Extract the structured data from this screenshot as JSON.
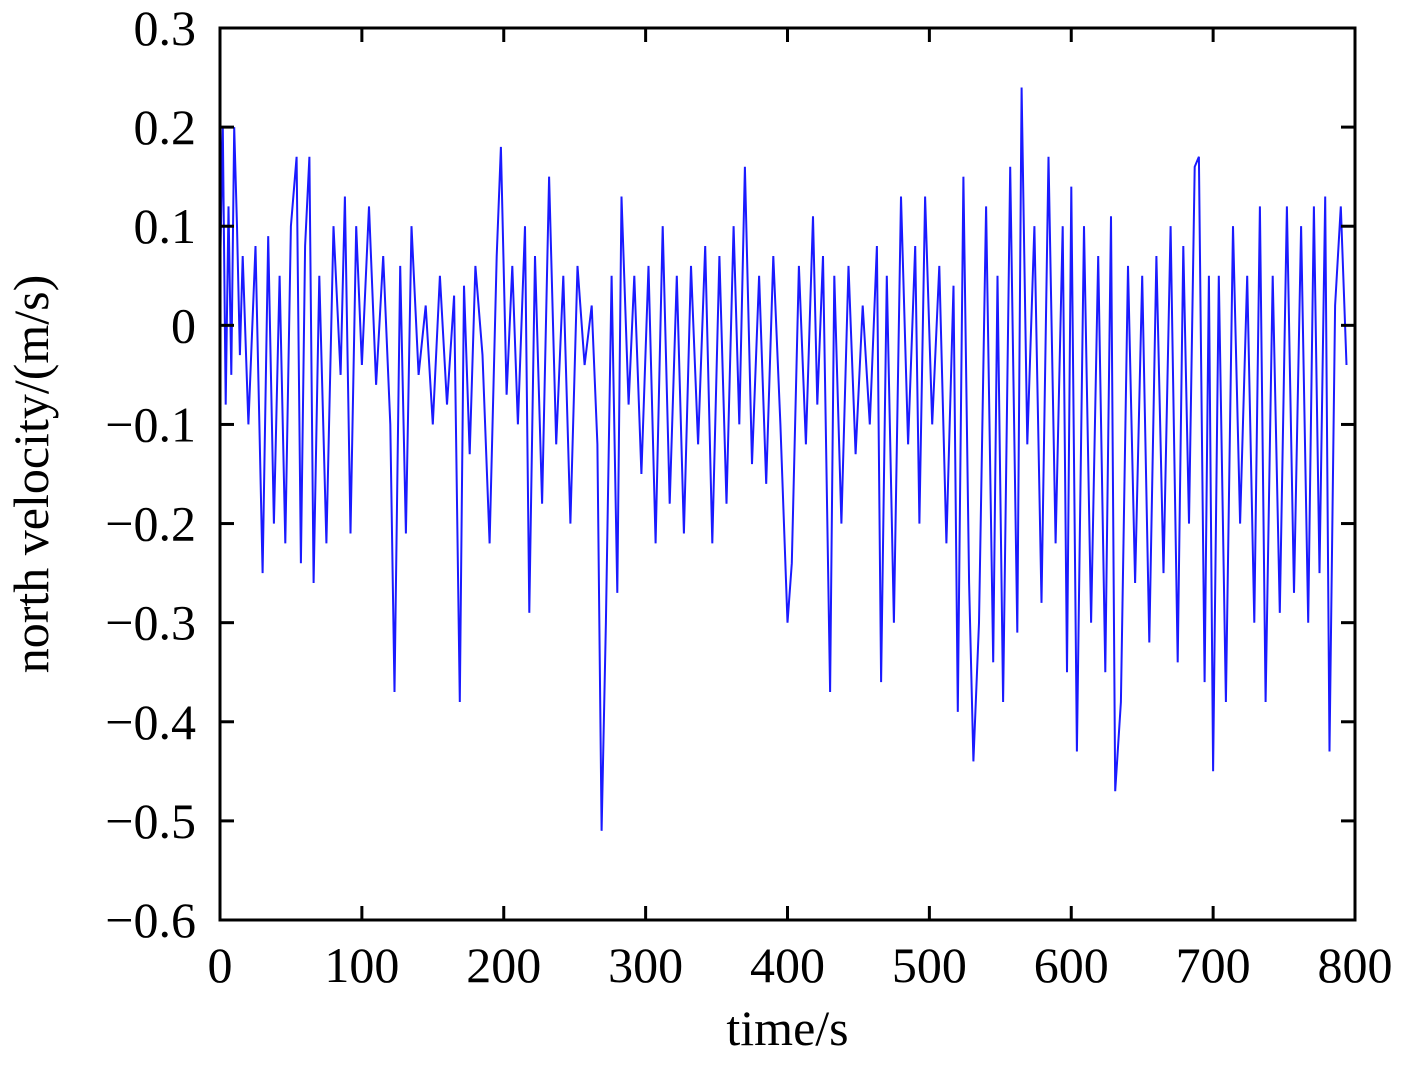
{
  "chart_data": {
    "type": "line",
    "xlabel": "time/s",
    "ylabel": "north velocity/(m/s)",
    "xlim": [
      0,
      800
    ],
    "ylim": [
      -0.6,
      0.3
    ],
    "x_ticks": [
      0,
      100,
      200,
      300,
      400,
      500,
      600,
      700,
      800
    ],
    "x_tick_labels": [
      "0",
      "100",
      "200",
      "300",
      "400",
      "500",
      "600",
      "700",
      "800"
    ],
    "y_ticks": [
      0.3,
      0.2,
      0.1,
      0,
      -0.1,
      -0.2,
      -0.3,
      -0.4,
      -0.5,
      -0.6
    ],
    "y_tick_labels": [
      "0.3",
      "0.2",
      "0.1",
      "0",
      "−0.1",
      "−0.2",
      "−0.3",
      "−0.4",
      "−0.5",
      "−0.6"
    ],
    "grid": false,
    "series_color": "#1a1aff",
    "series": [
      {
        "x": [
          0,
          2,
          4,
          6,
          8,
          10,
          12,
          14,
          16,
          20,
          25,
          30,
          34,
          38,
          42,
          46,
          50,
          54,
          57,
          60,
          63,
          66,
          70,
          75,
          80,
          85,
          88,
          92,
          96,
          100,
          105,
          110,
          115,
          120,
          123,
          127,
          131,
          135,
          140,
          145,
          150,
          155,
          160,
          165,
          169,
          172,
          176,
          180,
          185,
          190,
          195,
          198,
          202,
          206,
          210,
          215,
          218,
          222,
          227,
          232,
          237,
          242,
          247,
          252,
          257,
          262,
          266,
          269,
          272,
          276,
          280,
          283,
          288,
          292,
          297,
          302,
          307,
          312,
          317,
          322,
          327,
          332,
          337,
          342,
          347,
          352,
          357,
          362,
          366,
          370,
          375,
          380,
          385,
          390,
          395,
          400,
          403,
          408,
          413,
          418,
          421,
          425,
          430,
          433,
          438,
          443,
          448,
          453,
          458,
          463,
          466,
          470,
          475,
          480,
          485,
          490,
          493,
          497,
          502,
          507,
          512,
          517,
          520,
          524,
          528,
          531,
          535,
          540,
          545,
          548,
          552,
          557,
          562,
          565,
          569,
          574,
          579,
          584,
          589,
          594,
          597,
          600,
          604,
          609,
          614,
          619,
          624,
          628,
          631,
          635,
          640,
          645,
          650,
          655,
          660,
          665,
          670,
          675,
          679,
          683,
          687,
          690,
          694,
          697,
          700,
          704,
          709,
          714,
          719,
          724,
          729,
          733,
          737,
          742,
          747,
          752,
          757,
          762,
          767,
          771,
          775,
          779,
          782,
          786,
          790,
          794
        ],
        "y": [
          0.05,
          0.2,
          -0.08,
          0.12,
          -0.05,
          0.2,
          0.1,
          -0.03,
          0.07,
          -0.1,
          0.08,
          -0.25,
          0.09,
          -0.2,
          0.05,
          -0.22,
          0.1,
          0.17,
          -0.24,
          0.08,
          0.17,
          -0.26,
          0.05,
          -0.22,
          0.1,
          -0.05,
          0.13,
          -0.21,
          0.1,
          -0.04,
          0.12,
          -0.06,
          0.07,
          -0.1,
          -0.37,
          0.06,
          -0.21,
          0.1,
          -0.05,
          0.02,
          -0.1,
          0.05,
          -0.08,
          0.03,
          -0.38,
          0.04,
          -0.13,
          0.06,
          -0.03,
          -0.22,
          0.07,
          0.18,
          -0.07,
          0.06,
          -0.1,
          0.1,
          -0.29,
          0.07,
          -0.18,
          0.15,
          -0.12,
          0.05,
          -0.2,
          0.06,
          -0.04,
          0.02,
          -0.12,
          -0.51,
          -0.3,
          0.05,
          -0.27,
          0.13,
          -0.08,
          0.05,
          -0.15,
          0.06,
          -0.22,
          0.1,
          -0.18,
          0.05,
          -0.21,
          0.06,
          -0.12,
          0.08,
          -0.22,
          0.07,
          -0.18,
          0.1,
          -0.1,
          0.16,
          -0.14,
          0.05,
          -0.16,
          0.07,
          -0.1,
          -0.3,
          -0.24,
          0.06,
          -0.12,
          0.11,
          -0.08,
          0.07,
          -0.37,
          0.05,
          -0.2,
          0.06,
          -0.13,
          0.02,
          -0.1,
          0.08,
          -0.36,
          0.05,
          -0.3,
          0.13,
          -0.12,
          0.08,
          -0.2,
          0.13,
          -0.1,
          0.06,
          -0.22,
          0.04,
          -0.39,
          0.15,
          -0.26,
          -0.44,
          -0.3,
          0.12,
          -0.34,
          0.05,
          -0.38,
          0.16,
          -0.31,
          0.24,
          -0.12,
          0.1,
          -0.28,
          0.17,
          -0.22,
          0.1,
          -0.35,
          0.14,
          -0.43,
          0.1,
          -0.3,
          0.07,
          -0.35,
          0.11,
          -0.47,
          -0.38,
          0.06,
          -0.26,
          0.05,
          -0.32,
          0.07,
          -0.25,
          0.1,
          -0.34,
          0.08,
          -0.2,
          0.16,
          0.17,
          -0.36,
          0.05,
          -0.45,
          0.05,
          -0.38,
          0.1,
          -0.2,
          0.05,
          -0.3,
          0.12,
          -0.38,
          0.05,
          -0.29,
          0.12,
          -0.27,
          0.1,
          -0.3,
          0.12,
          -0.25,
          0.13,
          -0.43,
          0.02,
          0.12,
          -0.04
        ]
      }
    ]
  }
}
